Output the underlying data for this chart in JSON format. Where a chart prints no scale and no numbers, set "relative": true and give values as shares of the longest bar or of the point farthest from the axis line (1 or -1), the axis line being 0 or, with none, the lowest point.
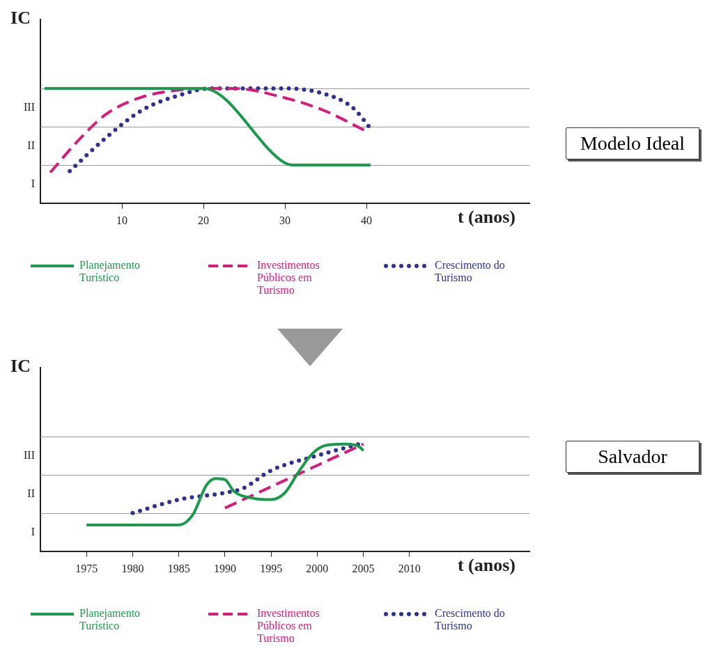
{
  "chart_data": [
    {
      "type": "line",
      "xlabel": "t (anos)",
      "ylabel": "IC",
      "xlim": [
        0,
        60
      ],
      "xticks": [
        10,
        20,
        30,
        40
      ],
      "relative": true,
      "legend": "bottom",
      "marker": "none",
      "ref_lines": [
        {
          "axis": "y",
          "value": 0.333,
          "color": "#999999"
        },
        {
          "axis": "y",
          "value": 0.667,
          "color": "#999999"
        },
        {
          "axis": "y",
          "value": 1,
          "color": "#999999"
        }
      ],
      "annotations": [
        "I",
        "II",
        "III",
        "Modelo Ideal"
      ],
      "series": [
        {
          "name": "Planejamento Turístico",
          "color": "#1a9a4a",
          "line_style": "solid",
          "x": [
            0.5,
            20,
            30,
            31,
            40.5
          ],
          "values": [
            1,
            1,
            0.35,
            0.333,
            0.333
          ]
        },
        {
          "name": "Investimentos Públicos em Turismo",
          "color": "#d81b7a",
          "line_style": "dashed",
          "x": [
            1.2,
            5,
            8.1,
            12.4,
            16.7,
            20,
            23.7,
            29.7,
            34.8,
            39.8
          ],
          "values": [
            0.267,
            0.573,
            0.777,
            0.923,
            0.983,
            1,
            1,
            0.923,
            0.807,
            0.633
          ]
        },
        {
          "name": "Crescimento do Turismo",
          "color": "#2e3192",
          "line_style": "dotted",
          "x": [
            3.6,
            8.1,
            12.4,
            16.7,
            21,
            29.7,
            34.8,
            38.3,
            40.6
          ],
          "values": [
            0.28,
            0.573,
            0.807,
            0.933,
            1,
            1,
            0.953,
            0.833,
            0.643
          ]
        }
      ]
    },
    {
      "type": "line",
      "xlabel": "t (anos)",
      "ylabel": "IC",
      "xlim": [
        1970,
        2023
      ],
      "xticks": [
        1975,
        1980,
        1985,
        1990,
        1995,
        2000,
        2005,
        2010
      ],
      "relative": true,
      "legend": "bottom",
      "marker": "none",
      "ref_lines": [
        {
          "axis": "y",
          "value": 0.357,
          "color": "#999999"
        },
        {
          "axis": "y",
          "value": 0.714,
          "color": "#999999"
        },
        {
          "axis": "y",
          "value": 1.071,
          "color": "#999999"
        }
      ],
      "annotations": [
        "I",
        "II",
        "III",
        "Salvador"
      ],
      "series": [
        {
          "name": "Planejamento Turístico",
          "color": "#1a9a4a",
          "line_style": "solid",
          "x": [
            1975,
            1985,
            1986.5,
            1988,
            1989,
            1990,
            1991,
            1993,
            1995,
            1996.5,
            1998,
            1999.5,
            2001,
            2003,
            2004.5,
            2005
          ],
          "values": [
            0.246,
            0.246,
            0.339,
            0.618,
            0.679,
            0.668,
            0.557,
            0.496,
            0.482,
            0.546,
            0.743,
            0.914,
            0.989,
            1,
            0.979,
            0.939
          ]
        },
        {
          "name": "Investimentos Públicos em Turismo",
          "color": "#d81b7a",
          "line_style": "dashed",
          "x": [
            1990,
            2005
          ],
          "values": [
            0.404,
            1
          ]
        },
        {
          "name": "Crescimento do Turismo",
          "color": "#2e3192",
          "line_style": "dotted",
          "x": [
            1980,
            1985,
            1990,
            1992,
            1995,
            2000,
            2004.5
          ],
          "values": [
            0.357,
            0.482,
            0.546,
            0.589,
            0.754,
            0.893,
            1
          ]
        }
      ]
    }
  ]
}
